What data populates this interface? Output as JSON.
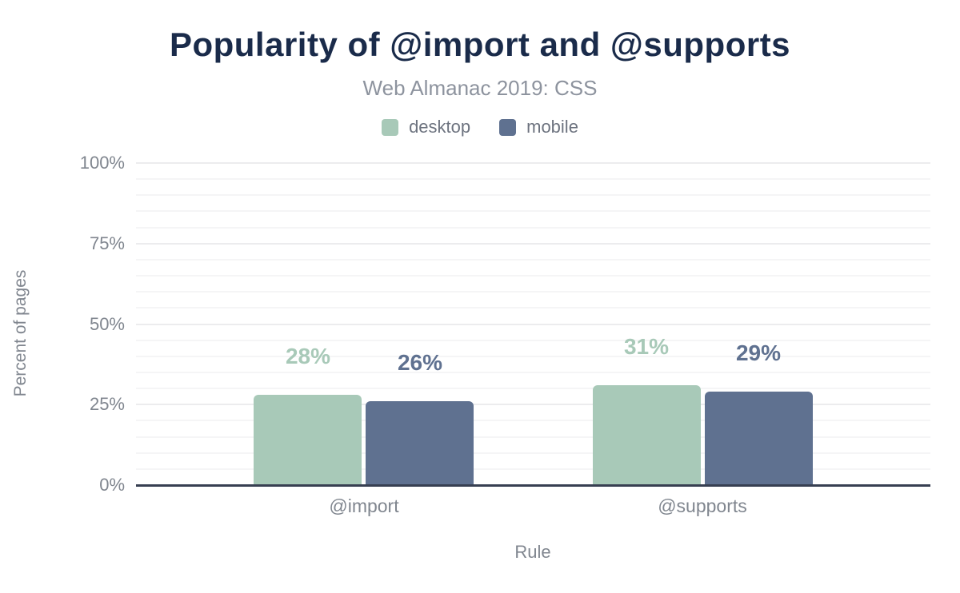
{
  "chart_data": {
    "type": "bar",
    "title": "Popularity of @import and @supports",
    "subtitle": "Web Almanac 2019: CSS",
    "categories": [
      "@import",
      "@supports"
    ],
    "series": [
      {
        "name": "desktop",
        "color": "#a8c9b8",
        "values": [
          28,
          31
        ],
        "labels": [
          "28%",
          "31%"
        ]
      },
      {
        "name": "mobile",
        "color": "#5f7190",
        "values": [
          26,
          29
        ],
        "labels": [
          "26%",
          "29%"
        ]
      }
    ],
    "xlabel": "Rule",
    "ylabel": "Percent of pages",
    "ylim": [
      0,
      100
    ],
    "yticks": [
      0,
      25,
      50,
      75,
      100
    ],
    "ytick_labels": [
      "0%",
      "25%",
      "50%",
      "75%",
      "100%"
    ],
    "minor_grid_step": 5,
    "grid": true,
    "legend_position": "top"
  },
  "colors": {
    "background": "#ffffff",
    "title": "#1a2b4a",
    "subtitle": "#8d939e",
    "legend_text": "#6d737f",
    "axis_text": "#80868f",
    "axis_line": "#373f51",
    "grid_major": "#ececee",
    "grid_minor": "#f5f5f6",
    "desktop": "#a8c9b8",
    "mobile": "#5f7190"
  }
}
